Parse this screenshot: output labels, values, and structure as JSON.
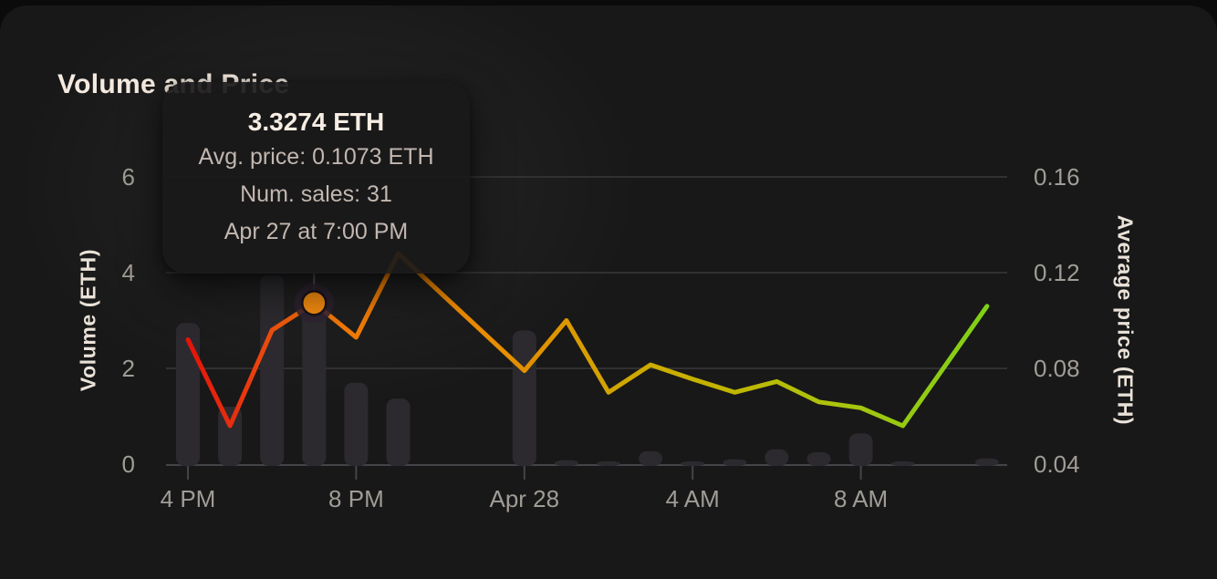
{
  "header": {
    "title": "Volume and Price"
  },
  "tooltip": {
    "title": "3.3274 ETH",
    "avg_price_line": "Avg. price: 0.1073 ETH",
    "num_sales_line": "Num. sales: 31",
    "date_line": "Apr 27 at 7:00 PM"
  },
  "chart_data": {
    "type": "bar+line",
    "title": "Volume and Price",
    "legend_position": "none",
    "grid": "horizontal",
    "series": [
      {
        "name": "Volume",
        "type": "bar",
        "unit": "ETH",
        "axis": "left",
        "color": "#2c2a2e"
      },
      {
        "name": "Average price",
        "type": "line",
        "unit": "ETH",
        "axis": "right",
        "color_gradient_left_to_right": [
          "#e51309",
          "#e73110",
          "#f0730a",
          "#f08600",
          "#e09200",
          "#cfa800",
          "#c3b400",
          "#adc30c",
          "#7fd117"
        ]
      }
    ],
    "points": [
      {
        "time": "Apr 27 4 PM",
        "t": 16,
        "volume_eth": 2.95,
        "avg_price_eth": 0.092
      },
      {
        "time": "Apr 27 5 PM",
        "t": 17,
        "volume_eth": 1.2,
        "avg_price_eth": 0.056
      },
      {
        "time": "Apr 27 6 PM",
        "t": 18,
        "volume_eth": 3.95,
        "avg_price_eth": 0.096
      },
      {
        "time": "Apr 27 7 PM",
        "t": 19,
        "volume_eth": 3.3274,
        "avg_price_eth": 0.1073,
        "num_sales": 31,
        "highlighted": true
      },
      {
        "time": "Apr 27 8 PM",
        "t": 20,
        "volume_eth": 1.7,
        "avg_price_eth": 0.093
      },
      {
        "time": "Apr 27 9 PM",
        "t": 21,
        "volume_eth": 1.37,
        "avg_price_eth": 0.128
      },
      {
        "time": "Apr 28 12 AM",
        "t": 24,
        "volume_eth": 2.79,
        "avg_price_eth": 0.079
      },
      {
        "time": "Apr 28 1 AM",
        "t": 25,
        "volume_eth": 0.08,
        "avg_price_eth": 0.1
      },
      {
        "time": "Apr 28 2 AM",
        "t": 26,
        "volume_eth": 0.05,
        "avg_price_eth": 0.07
      },
      {
        "time": "Apr 28 3 AM",
        "t": 27,
        "volume_eth": 0.27,
        "avg_price_eth": 0.0815
      },
      {
        "time": "Apr 28 4 AM",
        "t": 28,
        "volume_eth": 0.05,
        "avg_price_eth": 0.0755
      },
      {
        "time": "Apr 28 5 AM",
        "t": 29,
        "volume_eth": 0.1,
        "avg_price_eth": 0.07
      },
      {
        "time": "Apr 28 6 AM",
        "t": 30,
        "volume_eth": 0.31,
        "avg_price_eth": 0.0745
      },
      {
        "time": "Apr 28 7 AM",
        "t": 31,
        "volume_eth": 0.25,
        "avg_price_eth": 0.066
      },
      {
        "time": "Apr 28 8 AM",
        "t": 32,
        "volume_eth": 0.64,
        "avg_price_eth": 0.0635
      },
      {
        "time": "Apr 28 9 AM",
        "t": 33,
        "volume_eth": 0.03,
        "avg_price_eth": 0.056
      },
      {
        "time": "Apr 28 11 AM",
        "t": 35,
        "volume_eth": 0.12,
        "avg_price_eth": 0.106
      }
    ],
    "y_left": {
      "label": "Volume (ETH)",
      "ticks": [
        "0",
        "2",
        "4",
        "6"
      ],
      "tick_values": [
        0,
        2,
        4,
        6
      ],
      "range": [
        0,
        6.8
      ]
    },
    "y_right": {
      "label": "Average price (ETH)",
      "ticks": [
        "0.04",
        "0.08",
        "0.12",
        "0.16"
      ],
      "tick_values": [
        0.04,
        0.08,
        0.12,
        0.16
      ],
      "range": [
        0.04,
        0.176
      ]
    },
    "x_ticks": [
      {
        "t": 16,
        "label": "4 PM"
      },
      {
        "t": 20,
        "label": "8 PM"
      },
      {
        "t": 24,
        "label": "Apr 28"
      },
      {
        "t": 28,
        "label": "4 AM"
      },
      {
        "t": 32,
        "label": "8 AM"
      }
    ],
    "colors": {
      "card_bg": "#181818",
      "outer_bg": "#0b0b0b",
      "bar": "#2c2a2e",
      "grid": "#3a383a",
      "axis": "#454347",
      "tick_text": "#a09c97",
      "axis_title_text": "#eae2d8",
      "title_text": "#f5eae0",
      "dot": "#f0890f",
      "dot_ring": "#191319",
      "dot_halo": "#2e2231",
      "crosshair": "#56525a"
    }
  }
}
